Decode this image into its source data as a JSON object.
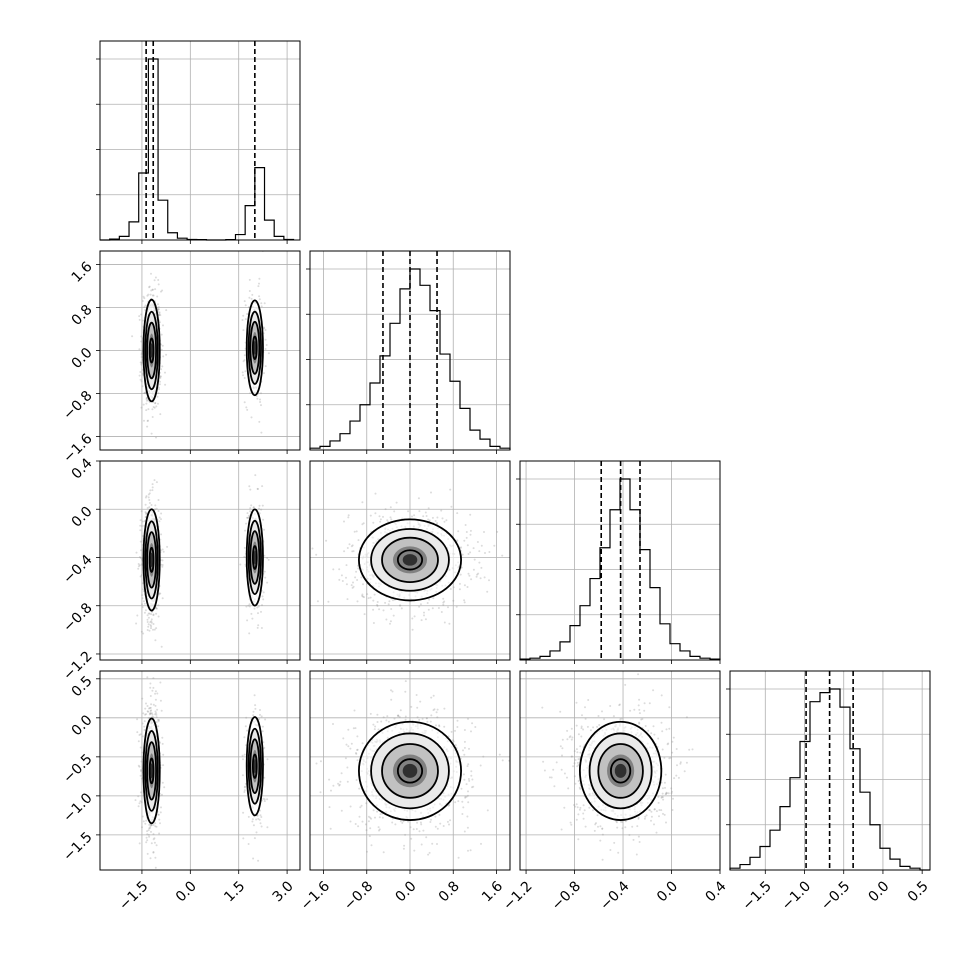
{
  "chart_data": {
    "type": "corner",
    "grid": true,
    "parameters": [
      {
        "index": 0,
        "range": [
          -2.8,
          3.4
        ],
        "ticks": [
          -1.5,
          0.0,
          1.5,
          3.0
        ],
        "tick_labels": [
          "−1.5",
          "0.0",
          "1.5",
          "3.0"
        ],
        "quantiles": [
          -1.37,
          -1.15,
          2.0
        ],
        "histogram": {
          "bin_edges": [
            -2.8,
            -2.5,
            -2.2,
            -1.9,
            -1.6,
            -1.3,
            -1.0,
            -0.7,
            -0.4,
            -0.1,
            0.2,
            0.5,
            0.8,
            1.1,
            1.4,
            1.7,
            2.0,
            2.3,
            2.6,
            2.9,
            3.2
          ],
          "heights": [
            0.0,
            0.005,
            0.02,
            0.1,
            0.37,
            1.0,
            0.22,
            0.04,
            0.01,
            0.003,
            0.002,
            0.0,
            0.0,
            0.002,
            0.03,
            0.19,
            0.4,
            0.11,
            0.02,
            0.003
          ]
        }
      },
      {
        "index": 1,
        "range": [
          -1.85,
          1.85
        ],
        "ticks": [
          -1.6,
          -0.8,
          0.0,
          0.8,
          1.6
        ],
        "tick_labels": [
          "−1.6",
          "−0.8",
          "0.0",
          "0.8",
          "1.6"
        ],
        "quantiles": [
          -0.5,
          0.0,
          0.5
        ],
        "histogram": {
          "bin_edges": [
            -1.85,
            -1.665,
            -1.48,
            -1.295,
            -1.11,
            -0.925,
            -0.74,
            -0.555,
            -0.37,
            -0.185,
            0.0,
            0.185,
            0.37,
            0.555,
            0.74,
            0.925,
            1.11,
            1.295,
            1.48,
            1.665,
            1.85
          ],
          "heights": [
            0.01,
            0.02,
            0.05,
            0.09,
            0.16,
            0.25,
            0.37,
            0.52,
            0.7,
            0.89,
            1.0,
            0.91,
            0.77,
            0.53,
            0.38,
            0.23,
            0.11,
            0.06,
            0.02,
            0.01
          ]
        }
      },
      {
        "index": 2,
        "range": [
          -1.25,
          0.4
        ],
        "ticks": [
          -1.2,
          -0.8,
          -0.4,
          0.0,
          0.4
        ],
        "tick_labels": [
          "−1.2",
          "−0.8",
          "−0.4",
          "0.0",
          "0.4"
        ],
        "quantiles": [
          -0.58,
          -0.42,
          -0.26
        ],
        "histogram": {
          "bin_edges": [
            -1.25,
            -1.1675,
            -1.085,
            -1.0025,
            -0.92,
            -0.8375,
            -0.755,
            -0.6725,
            -0.59,
            -0.5075,
            -0.425,
            -0.3425,
            -0.26,
            -0.1775,
            -0.095,
            -0.0125,
            0.07,
            0.1525,
            0.235,
            0.3175,
            0.4
          ],
          "heights": [
            0.005,
            0.01,
            0.02,
            0.05,
            0.1,
            0.19,
            0.3,
            0.45,
            0.62,
            0.83,
            1.0,
            0.83,
            0.61,
            0.4,
            0.2,
            0.09,
            0.05,
            0.02,
            0.01,
            0.005
          ]
        }
      },
      {
        "index": 3,
        "range": [
          -1.95,
          0.6
        ],
        "ticks": [
          -1.5,
          -1.0,
          -0.5,
          0.0,
          0.5
        ],
        "tick_labels": [
          "−1.5",
          "−1.0",
          "−0.5",
          "0.0",
          "0.5"
        ],
        "quantiles": [
          -0.98,
          -0.68,
          -0.38
        ],
        "histogram": {
          "bin_edges": [
            -1.95,
            -1.8225,
            -1.695,
            -1.5675,
            -1.44,
            -1.3125,
            -1.185,
            -1.0575,
            -0.93,
            -0.8025,
            -0.675,
            -0.5475,
            -0.42,
            -0.2925,
            -0.165,
            -0.0375,
            0.09,
            0.2175,
            0.345,
            0.4725,
            0.6
          ],
          "heights": [
            0.01,
            0.03,
            0.07,
            0.13,
            0.22,
            0.35,
            0.51,
            0.71,
            0.93,
            0.98,
            1.0,
            0.9,
            0.67,
            0.43,
            0.25,
            0.12,
            0.06,
            0.02,
            0.01,
            0.0
          ]
        }
      }
    ],
    "pairs": [
      {
        "x": 0,
        "y": 1,
        "clusters": [
          {
            "cx": -1.2,
            "cy": 0.0,
            "sx": 0.12,
            "sy": 0.45,
            "rho": 0.0,
            "weight": 0.7
          },
          {
            "cx": 2.0,
            "cy": 0.05,
            "sx": 0.12,
            "sy": 0.42,
            "rho": 0.0,
            "weight": 0.3
          }
        ]
      },
      {
        "x": 0,
        "y": 2,
        "clusters": [
          {
            "cx": -1.2,
            "cy": -0.42,
            "sx": 0.12,
            "sy": 0.2,
            "rho": 0.0,
            "weight": 0.7
          },
          {
            "cx": 2.0,
            "cy": -0.4,
            "sx": 0.12,
            "sy": 0.19,
            "rho": 0.0,
            "weight": 0.3
          }
        ]
      },
      {
        "x": 1,
        "y": 2,
        "clusters": [
          {
            "cx": 0.0,
            "cy": -0.42,
            "sx": 0.45,
            "sy": 0.16,
            "rho": 0.0,
            "weight": 1.0
          }
        ]
      },
      {
        "x": 0,
        "y": 3,
        "clusters": [
          {
            "cx": -1.2,
            "cy": -0.68,
            "sx": 0.12,
            "sy": 0.32,
            "rho": 0.0,
            "weight": 0.7
          },
          {
            "cx": 2.0,
            "cy": -0.62,
            "sx": 0.12,
            "sy": 0.3,
            "rho": 0.0,
            "weight": 0.3
          }
        ]
      },
      {
        "x": 1,
        "y": 3,
        "clusters": [
          {
            "cx": 0.0,
            "cy": -0.68,
            "sx": 0.45,
            "sy": 0.3,
            "rho": 0.0,
            "weight": 1.0
          }
        ]
      },
      {
        "x": 2,
        "y": 3,
        "clusters": [
          {
            "cx": -0.42,
            "cy": -0.68,
            "sx": 0.16,
            "sy": 0.3,
            "rho": 0.0,
            "weight": 1.0
          }
        ]
      }
    ]
  }
}
